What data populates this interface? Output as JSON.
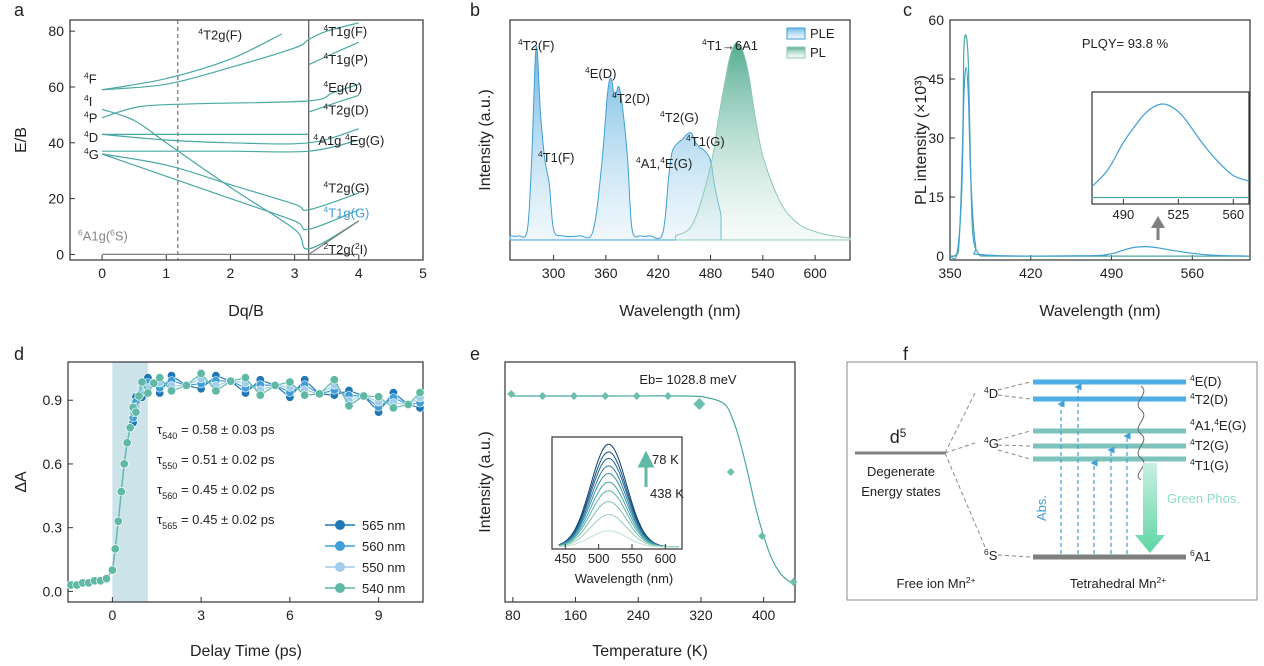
{
  "colors": {
    "teal": "#4aa8a3",
    "blue": "#3f9fd6",
    "lightblue": "#9fcdea",
    "grey": "#7f7f7f",
    "green": "#8fdcbf",
    "axis": "#333333"
  },
  "panel_labels": [
    "a",
    "b",
    "c",
    "d",
    "e",
    "f"
  ],
  "chart_data": [
    {
      "panel": "a",
      "type": "line",
      "xlabel": "Dq/B",
      "ylabel": "E/B",
      "xlim": [
        -0.5,
        5
      ],
      "ylim": [
        -2,
        84
      ],
      "xticks": [
        "0",
        "1",
        "2",
        "3",
        "4",
        "5"
      ],
      "yticks": [
        "0",
        "20",
        "40",
        "60",
        "80"
      ],
      "dashed_x": 1.18,
      "solid_x": 3.22,
      "ground_label": "6A1g(6S)",
      "left_labels": [
        {
          "t": "4F",
          "y": 63
        },
        {
          "t": "4I",
          "y": 55
        },
        {
          "t": "4P",
          "y": 49
        },
        {
          "t": "4D",
          "y": 42
        },
        {
          "t": "4G",
          "y": 36
        }
      ],
      "right_labels": [
        {
          "t": "4T1g(F)",
          "y": 80
        },
        {
          "t": "4T1g(P)",
          "y": 70
        },
        {
          "t": "4Eg(D)",
          "y": 60
        },
        {
          "t": "4T2g(D)",
          "y": 52
        },
        {
          "t": "4A1g 4Eg(G)",
          "y": 41
        },
        {
          "t": "4T2g(G)",
          "y": 24
        },
        {
          "t": "4T1g(G)",
          "y": 15
        },
        {
          "t": "2T2g(2I)",
          "y": 2
        }
      ],
      "top_label": "4T2g(F)",
      "curves": [
        [
          [
            0,
            59
          ],
          [
            1,
            63
          ],
          [
            2,
            70
          ],
          [
            2.8,
            79
          ]
        ],
        [
          [
            0,
            59
          ],
          [
            1,
            61
          ],
          [
            2,
            67
          ],
          [
            3,
            74
          ],
          [
            3.22,
            77
          ],
          [
            3.5,
            80
          ],
          [
            4,
            83
          ]
        ],
        [
          [
            3.22,
            68
          ],
          [
            3.6,
            72
          ],
          [
            4,
            76
          ]
        ],
        [
          [
            0,
            49
          ],
          [
            0.6,
            53
          ],
          [
            1.5,
            54
          ],
          [
            3.22,
            55
          ],
          [
            3.6,
            58
          ],
          [
            4,
            61
          ]
        ],
        [
          [
            3.22,
            51
          ],
          [
            3.6,
            54
          ],
          [
            4,
            57
          ]
        ],
        [
          [
            0,
            43
          ],
          [
            1,
            43
          ],
          [
            2,
            43
          ],
          [
            3.22,
            43
          ]
        ],
        [
          [
            0,
            43
          ],
          [
            1,
            41
          ],
          [
            2,
            40
          ],
          [
            3.22,
            40
          ],
          [
            4,
            45
          ]
        ],
        [
          [
            0,
            37
          ],
          [
            1,
            37
          ],
          [
            2,
            37
          ],
          [
            3.22,
            37
          ],
          [
            4,
            41
          ]
        ],
        [
          [
            0,
            36
          ],
          [
            1,
            32
          ],
          [
            2,
            25
          ],
          [
            3,
            18
          ],
          [
            3.22,
            16
          ],
          [
            4,
            22
          ]
        ],
        [
          [
            0,
            36
          ],
          [
            1,
            28
          ],
          [
            2,
            20
          ],
          [
            3,
            12
          ],
          [
            3.22,
            9
          ],
          [
            4,
            16
          ]
        ],
        [
          [
            0,
            52
          ],
          [
            0.5,
            48
          ],
          [
            1,
            40
          ],
          [
            2,
            24
          ],
          [
            3,
            9
          ],
          [
            3.22,
            2
          ],
          [
            4,
            12
          ]
        ],
        [
          [
            0,
            0
          ],
          [
            4,
            0
          ]
        ]
      ]
    },
    {
      "panel": "b",
      "type": "area",
      "xlabel": "Wavelength (nm)",
      "ylabel": "Intensity (a.u.)",
      "xlim": [
        250,
        640
      ],
      "xticks": [
        "300",
        "360",
        "420",
        "480",
        "540",
        "600"
      ],
      "legend": [
        "PLE",
        "PL"
      ],
      "series": [
        {
          "name": "PLE",
          "x": [
            250,
            260,
            270,
            275,
            280,
            285,
            290,
            295,
            300,
            310,
            330,
            345,
            355,
            362,
            366,
            370,
            375,
            380,
            385,
            390,
            400,
            410,
            425,
            432,
            436,
            442,
            448,
            452,
            458,
            462,
            468,
            472,
            480,
            485,
            492
          ],
          "y": [
            0.02,
            0.02,
            0.05,
            0.4,
            0.92,
            0.6,
            0.38,
            0.27,
            0.05,
            0.02,
            0.02,
            0.04,
            0.35,
            0.7,
            0.77,
            0.68,
            0.73,
            0.6,
            0.38,
            0.05,
            0.02,
            0.02,
            0.03,
            0.3,
            0.42,
            0.46,
            0.48,
            0.5,
            0.51,
            0.47,
            0.44,
            0.43,
            0.38,
            0.25,
            0.12
          ]
        },
        {
          "name": "PL",
          "x": [
            440,
            460,
            480,
            490,
            500,
            505,
            510,
            515,
            520,
            525,
            530,
            540,
            560,
            580,
            600,
            620,
            640
          ],
          "y": [
            0.02,
            0.08,
            0.35,
            0.6,
            0.83,
            0.91,
            0.94,
            0.92,
            0.86,
            0.76,
            0.62,
            0.4,
            0.18,
            0.08,
            0.04,
            0.02,
            0.01
          ]
        }
      ],
      "annotations": [
        "4T2(F)",
        "4T1(F)",
        "4E(D)",
        "4T2(D)",
        "4A1,4E(G)",
        "4T2(G)",
        "4T1(G)",
        "4T1→6A1"
      ]
    },
    {
      "panel": "c",
      "type": "line",
      "xlabel": "Wavelength (nm)",
      "ylabel": "PL intensity (×10³)",
      "xlim": [
        350,
        610
      ],
      "ylim": [
        -1,
        60
      ],
      "xticks": [
        "350",
        "420",
        "490",
        "560"
      ],
      "yticks": [
        "0",
        "15",
        "30",
        "45",
        "60"
      ],
      "plqy": "PLQY= 93.8 %",
      "series": [
        {
          "name": "teal",
          "x": [
            350,
            355,
            358,
            361,
            362,
            364,
            366,
            368,
            370,
            375,
            380,
            400,
            610
          ],
          "y": [
            0,
            0.3,
            4,
            30,
            52,
            56,
            48,
            20,
            5,
            0.5,
            0.1,
            0,
            0
          ]
        },
        {
          "name": "blue",
          "x": [
            350,
            356,
            360,
            362,
            364,
            366,
            368,
            372,
            380,
            470,
            490,
            500,
            510,
            520,
            530,
            540,
            560,
            580,
            610
          ],
          "y": [
            0,
            0.5,
            15,
            40,
            48,
            40,
            20,
            3,
            0.3,
            0.1,
            0.6,
            1.5,
            2.2,
            2.4,
            2.1,
            1.6,
            0.7,
            0.2,
            0
          ]
        }
      ],
      "inset": {
        "xticks": [
          "490",
          "525",
          "560"
        ],
        "x": [
          470,
          480,
          490,
          500,
          505,
          510,
          515,
          520,
          525,
          530,
          540,
          550,
          560,
          570
        ],
        "y": [
          0.15,
          0.3,
          0.55,
          0.75,
          0.83,
          0.88,
          0.9,
          0.88,
          0.83,
          0.75,
          0.55,
          0.38,
          0.25,
          0.2
        ],
        "baseline": 0.05
      }
    },
    {
      "panel": "d",
      "type": "scatter",
      "xlabel": "Delay Time (ps)",
      "ylabel": "ΔA",
      "xlim": [
        -1.5,
        10.5
      ],
      "ylim": [
        -0.05,
        1.08
      ],
      "xticks": [
        "0",
        "3",
        "6",
        "9"
      ],
      "yticks": [
        "0.0",
        "0.3",
        "0.6",
        "0.9"
      ],
      "shade": [
        0,
        1.2
      ],
      "taus": [
        "τ540 = 0.58 ± 0.03 ps",
        "τ550 = 0.51 ± 0.02 ps",
        "τ560 = 0.45 ± 0.02 ps",
        "τ565 = 0.45 ± 0.02 ps"
      ],
      "series": [
        {
          "name": "565 nm",
          "color": "#1f78b4"
        },
        {
          "name": "560 nm",
          "color": "#3f9fd6"
        },
        {
          "name": "550 nm",
          "color": "#9fcdea"
        },
        {
          "name": "540 nm",
          "color": "#5fb9a5"
        }
      ],
      "x": [
        -1.4,
        -1.2,
        -1,
        -0.8,
        -0.6,
        -0.4,
        -0.2,
        0,
        0.1,
        0.2,
        0.3,
        0.4,
        0.5,
        0.6,
        0.7,
        0.8,
        0.9,
        1.0,
        1.2,
        1.4,
        1.6,
        2,
        2.5,
        3,
        3.5,
        4,
        4.5,
        5,
        5.5,
        6,
        6.5,
        7,
        7.5,
        8,
        8.5,
        9,
        9.5,
        10,
        10.4
      ],
      "y": [
        0.03,
        0.03,
        0.04,
        0.04,
        0.05,
        0.05,
        0.06,
        0.1,
        0.2,
        0.33,
        0.47,
        0.6,
        0.7,
        0.77,
        0.83,
        0.88,
        0.92,
        0.95,
        0.97,
        0.98,
        0.97,
        0.98,
        0.97,
        0.99,
        0.98,
        0.99,
        0.97,
        0.96,
        0.97,
        0.95,
        0.96,
        0.93,
        0.96,
        0.91,
        0.92,
        0.88,
        0.9,
        0.88,
        0.9
      ]
    },
    {
      "panel": "e",
      "type": "scatter",
      "xlabel": "Temperature (K)",
      "ylabel": "Intensity (a.u.)",
      "xlim": [
        70,
        440
      ],
      "xticks": [
        "80",
        "160",
        "240",
        "320",
        "400"
      ],
      "eb": "Eb= 1028.8 meV",
      "points_x": [
        78,
        118,
        158,
        198,
        238,
        278,
        318,
        358,
        398,
        438
      ],
      "points_y": [
        0.98,
        0.97,
        0.97,
        0.97,
        0.97,
        0.97,
        0.93,
        0.59,
        0.27,
        0.04
      ],
      "fit_x": [
        78,
        200,
        300,
        330,
        350,
        360,
        370,
        380,
        390,
        400,
        410,
        420,
        430,
        440
      ],
      "fit_y": [
        0.97,
        0.97,
        0.97,
        0.96,
        0.93,
        0.86,
        0.74,
        0.58,
        0.41,
        0.27,
        0.16,
        0.09,
        0.05,
        0.03
      ],
      "inset": {
        "xlabel": "Wavelength (nm)",
        "xticks": [
          "450",
          "500",
          "550",
          "600"
        ],
        "hi": "78 K",
        "lo": "438 K",
        "peaks": [
          0.95,
          0.88,
          0.82,
          0.75,
          0.68,
          0.6,
          0.52,
          0.42,
          0.3,
          0.15
        ]
      }
    }
  ],
  "diagram_f": {
    "d5": "d5",
    "degenerate": "Degenerate",
    "energy_states": "Energy states",
    "free_ion": "Free ion Mn2+",
    "tetrahedral": "Tetrahedral Mn2+",
    "left_terms": [
      "4D",
      "4G",
      "6S"
    ],
    "right_terms": [
      "4E(D)",
      "4T2(D)",
      "4A1,4E(G)",
      "4T2(G)",
      "4T1(G)",
      "6A1"
    ],
    "abs": "Abs.",
    "phos": "Green Phos."
  }
}
